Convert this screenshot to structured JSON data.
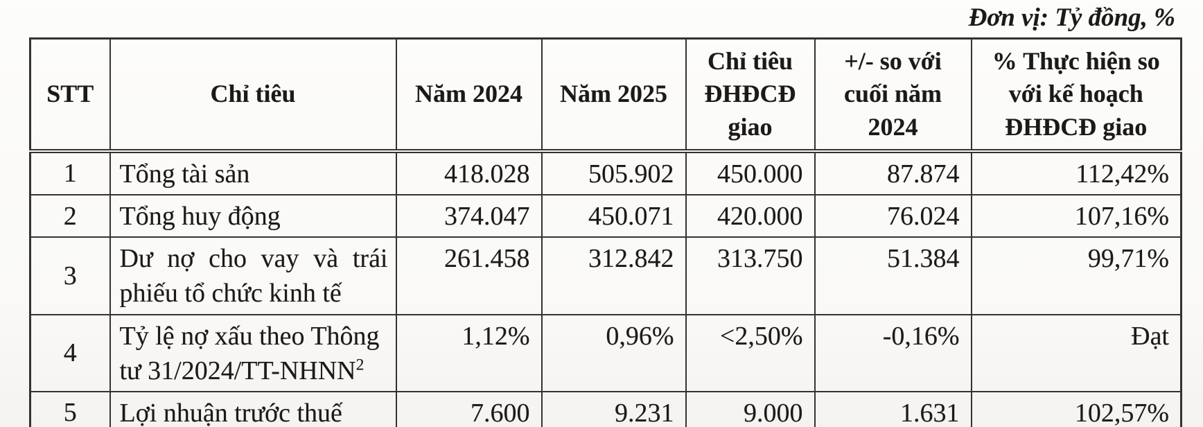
{
  "unit_note": "Đơn vị: Tỷ đồng, %",
  "colors": {
    "ink": "#1c1a17",
    "paper": "#fbfaf8",
    "border": "#35322e"
  },
  "table": {
    "headers": {
      "stt": "STT",
      "chi_tieu": "Chỉ tiêu",
      "nam_2024": "Năm 2024",
      "nam_2025": "Năm 2025",
      "target": "Chỉ tiêu ĐHĐCĐ giao",
      "change": "+/- so với cuối năm 2024",
      "pct": "% Thực hiện so với kế hoạch ĐHĐCĐ giao"
    },
    "rows": [
      {
        "stt": "1",
        "label": "Tổng tài sản",
        "nam_2024": "418.028",
        "nam_2025": "505.902",
        "target": "450.000",
        "change": "87.874",
        "pct": "112,42%"
      },
      {
        "stt": "2",
        "label": "Tổng huy động",
        "nam_2024": "374.047",
        "nam_2025": "450.071",
        "target": "420.000",
        "change": "76.024",
        "pct": "107,16%"
      },
      {
        "stt": "3",
        "label": "Dư nợ cho vay và trái phiếu tổ chức kinh tế",
        "nam_2024": "261.458",
        "nam_2025": "312.842",
        "target": "313.750",
        "change": "51.384",
        "pct": "99,71%"
      },
      {
        "stt": "4",
        "label": "Tỷ lệ nợ xấu theo Thông tư 31/2024/TT-NHNN",
        "label_sup": "2",
        "nam_2024": "1,12%",
        "nam_2025": "0,96%",
        "target": "<2,50%",
        "change": "-0,16%",
        "pct": "Đạt"
      },
      {
        "stt": "5",
        "label": "Lợi nhuận trước thuế",
        "nam_2024": "7.600",
        "nam_2025": "9.231",
        "target": "9.000",
        "change": "1.631",
        "pct": "102,57%"
      }
    ]
  }
}
